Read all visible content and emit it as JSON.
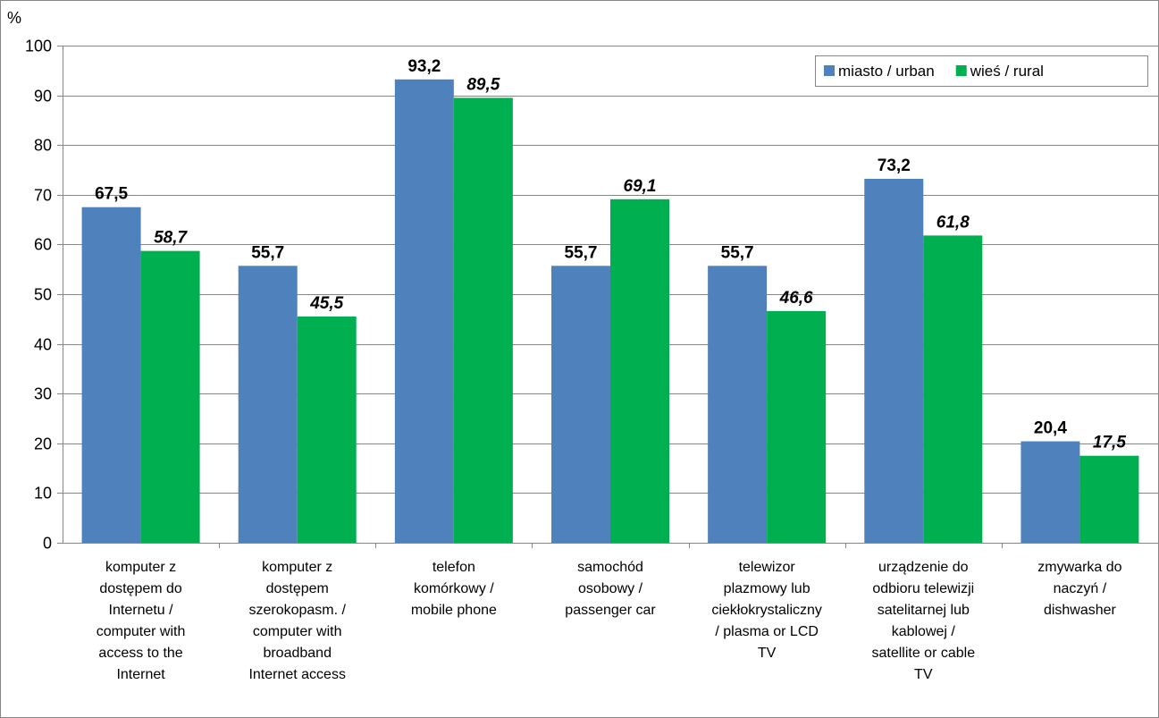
{
  "chart_data": {
    "type": "bar",
    "ylabel": "%",
    "ylim": [
      0,
      100
    ],
    "yticks": [
      0,
      10,
      20,
      30,
      40,
      50,
      60,
      70,
      80,
      90,
      100
    ],
    "grid": true,
    "legend_position": "top-right",
    "categories": [
      [
        "komputer z",
        "dostępem do",
        "Internetu /",
        "computer with",
        "access to the",
        "Internet"
      ],
      [
        "komputer z",
        "dostępem",
        "szerokopasm. /",
        "computer with",
        "broadband",
        "Internet access"
      ],
      [
        "telefon",
        "komórkowy /",
        "mobile phone"
      ],
      [
        "samochód",
        "osobowy /",
        "passenger car"
      ],
      [
        "telewizor",
        "plazmowy lub",
        "ciekłokrystaliczny",
        "/ plasma or LCD",
        "TV"
      ],
      [
        "urządzenie do",
        "odbioru telewizji",
        "satelitarnej lub",
        "kablowej /",
        "satellite or cable",
        "TV"
      ],
      [
        "zmywarka do",
        "naczyń /",
        "dishwasher"
      ]
    ],
    "series": [
      {
        "name": "miasto / urban",
        "color": "#4f81bd",
        "values": [
          67.5,
          55.7,
          93.2,
          55.7,
          55.7,
          73.2,
          20.4
        ],
        "labels": [
          "67,5",
          "55,7",
          "93,2",
          "55,7",
          "55,7",
          "73,2",
          "20,4"
        ],
        "label_italic": false
      },
      {
        "name": "wieś / rural",
        "color": "#00b050",
        "values": [
          58.7,
          45.5,
          89.5,
          69.1,
          46.6,
          61.8,
          17.5
        ],
        "labels": [
          "58,7",
          "45,5",
          "89,5",
          "69,1",
          "46,6",
          "61,8",
          "17,5"
        ],
        "label_italic": true
      }
    ]
  }
}
